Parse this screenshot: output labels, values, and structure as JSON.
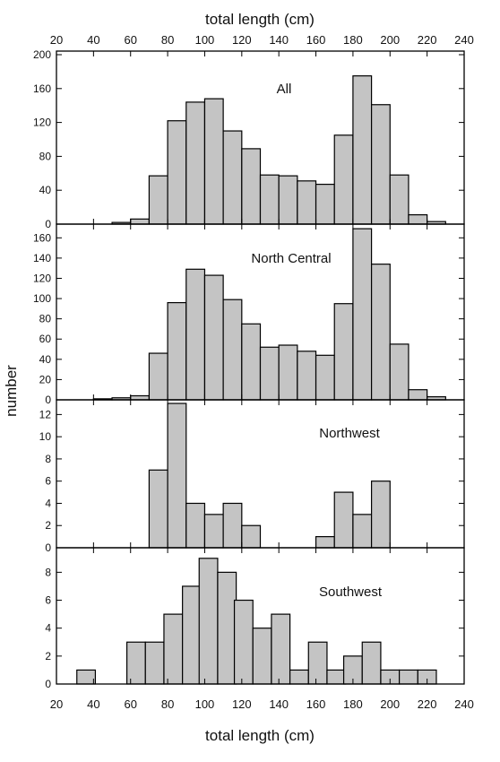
{
  "colors": {
    "bar_fill": "#c4c4c4",
    "bar_stroke": "#000000",
    "axis": "#000000"
  },
  "chart_data": {
    "type": "bar",
    "layout": "stacked-panels-shared-x",
    "xlabel_top": "total length (cm)",
    "xlabel_bottom": "total length (cm)",
    "ylabel": "number",
    "xlim": [
      20,
      240
    ],
    "xticks": [
      20,
      40,
      60,
      80,
      100,
      120,
      140,
      160,
      180,
      200,
      220,
      240
    ],
    "bin_width": 10,
    "bin_starts": [
      30,
      40,
      50,
      60,
      70,
      80,
      90,
      100,
      110,
      120,
      130,
      140,
      150,
      160,
      170,
      180,
      190,
      200,
      210,
      220
    ],
    "panels": [
      {
        "label": "All",
        "ylim": [
          0,
          200
        ],
        "yticks": [
          0,
          40,
          80,
          120,
          160,
          200
        ],
        "values": [
          0,
          0,
          2,
          6,
          57,
          122,
          144,
          148,
          110,
          89,
          58,
          57,
          51,
          47,
          105,
          175,
          141,
          58,
          11,
          3
        ]
      },
      {
        "label": "North Central",
        "ylim": [
          0,
          170
        ],
        "yticks": [
          0,
          20,
          40,
          60,
          80,
          100,
          120,
          140,
          160
        ],
        "values": [
          0,
          1,
          2,
          4,
          46,
          96,
          129,
          123,
          99,
          75,
          52,
          54,
          48,
          44,
          95,
          169,
          134,
          55,
          10,
          3
        ]
      },
      {
        "label": "Northwest",
        "ylim": [
          0,
          13
        ],
        "yticks": [
          0,
          2,
          4,
          6,
          8,
          10,
          12
        ],
        "values": [
          0,
          0,
          0,
          0,
          7,
          13,
          4,
          3,
          4,
          2,
          0,
          0,
          0,
          1,
          5,
          3,
          6,
          0,
          0,
          0
        ]
      },
      {
        "label": "Southwest",
        "ylim": [
          0,
          9.5
        ],
        "yticks": [
          0,
          2,
          4,
          6,
          8
        ],
        "values": [
          1,
          0,
          0,
          3,
          3,
          5,
          7,
          9,
          8,
          6,
          4,
          5,
          1,
          3,
          1,
          2,
          3,
          1,
          1,
          1
        ],
        "bin_starts": [
          31,
          41,
          51,
          58,
          68,
          78,
          88,
          97,
          107,
          116,
          126,
          136,
          146,
          156,
          166,
          175,
          185,
          195,
          205,
          215
        ]
      }
    ]
  }
}
